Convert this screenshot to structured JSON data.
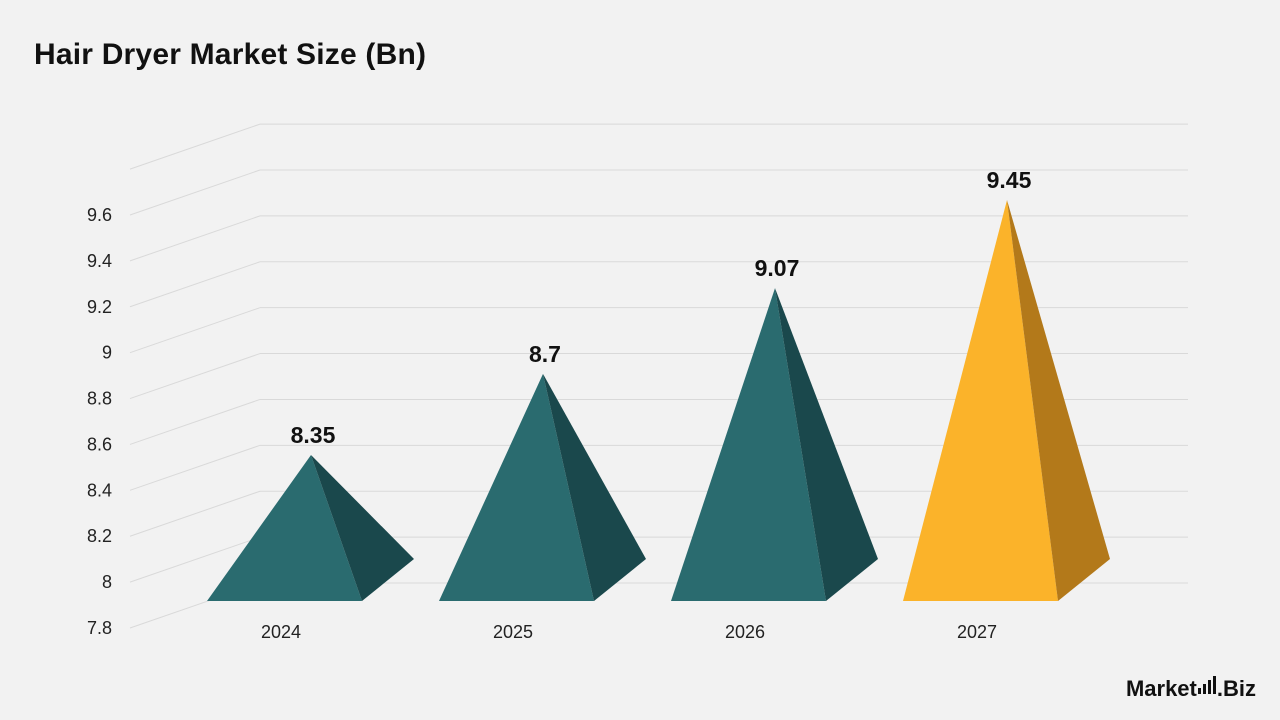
{
  "chart_data": {
    "type": "bar",
    "title": "Hair Dryer Market Size (Bn)",
    "xlabel": "",
    "ylabel": "",
    "categories": [
      "2024",
      "2025",
      "2026",
      "2027"
    ],
    "values": [
      8.35,
      8.7,
      9.07,
      9.45
    ],
    "value_labels": [
      "8.35",
      "8.7",
      "9.07",
      "9.45"
    ],
    "y_ticks": [
      "7.8",
      "8",
      "8.2",
      "8.4",
      "8.6",
      "8.8",
      "9",
      "9.2",
      "9.4",
      "9.6"
    ],
    "ylim": [
      7.8,
      9.6
    ],
    "grid": true,
    "bar_shape": "3d-pyramid",
    "colors": {
      "default_front": "#2a6b6f",
      "default_side": "#1a484c",
      "highlight_front": "#fbb32a",
      "highlight_side": "#b3791a",
      "grid": "#d9d9d9",
      "background": "#f2f2f2"
    },
    "highlight_index": 3
  },
  "brand": {
    "text_before": "Market",
    "text_after": ".Biz"
  }
}
